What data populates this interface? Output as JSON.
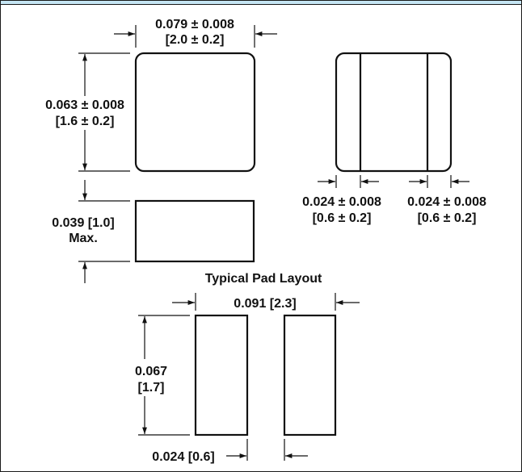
{
  "header": {
    "accent_color": "#c6e6f4"
  },
  "top_view": {
    "width_label": "0.079 ± 0.008",
    "width_label_mm": "[2.0 ± 0.2]",
    "height_label": "0.063 ± 0.008",
    "height_label_mm": "[1.6 ± 0.2]"
  },
  "side_view": {
    "thickness_label": "0.039 [1.0]",
    "thickness_qualifier": "Max."
  },
  "end_view": {
    "left_termination_label": "0.024 ± 0.008",
    "left_termination_label_mm": "[0.6 ± 0.2]",
    "right_termination_label": "0.024 ± 0.008",
    "right_termination_label_mm": "[0.6 ± 0.2]"
  },
  "pad_layout": {
    "title": "Typical Pad Layout",
    "overall_width_label": "0.091 [2.3]",
    "pad_height_label": "0.067",
    "pad_height_label_mm": "[1.7]",
    "pad_width_label": "0.024 [0.6]"
  }
}
